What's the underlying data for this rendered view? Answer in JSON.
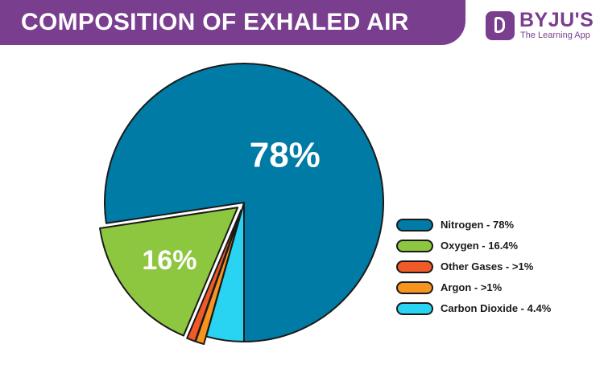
{
  "title": "COMPOSITION OF EXHALED AIR",
  "logo": {
    "name": "BYJU'S",
    "tagline": "The Learning App",
    "color": "#7a3e8f"
  },
  "chart_data": {
    "type": "pie",
    "slices": [
      {
        "name": "Nitrogen - 78%",
        "value": 78,
        "label": "78%",
        "color": "#007ba5",
        "explode": 0
      },
      {
        "name": "Oxygen - 16.4%",
        "value": 16.4,
        "label": "16%",
        "color": "#8dc63f",
        "explode": 1
      },
      {
        "name": "Other Gases - >1%",
        "value": 1,
        "label": "",
        "color": "#ef5a28",
        "explode": 1
      },
      {
        "name": "Argon - >1%",
        "value": 1,
        "label": "",
        "color": "#f7941d",
        "explode": 1
      },
      {
        "name": "Carbon Dioxide - 4.4%",
        "value": 4.4,
        "label": "",
        "color": "#29d3f2",
        "explode": 0
      }
    ],
    "legend_position": "right"
  }
}
